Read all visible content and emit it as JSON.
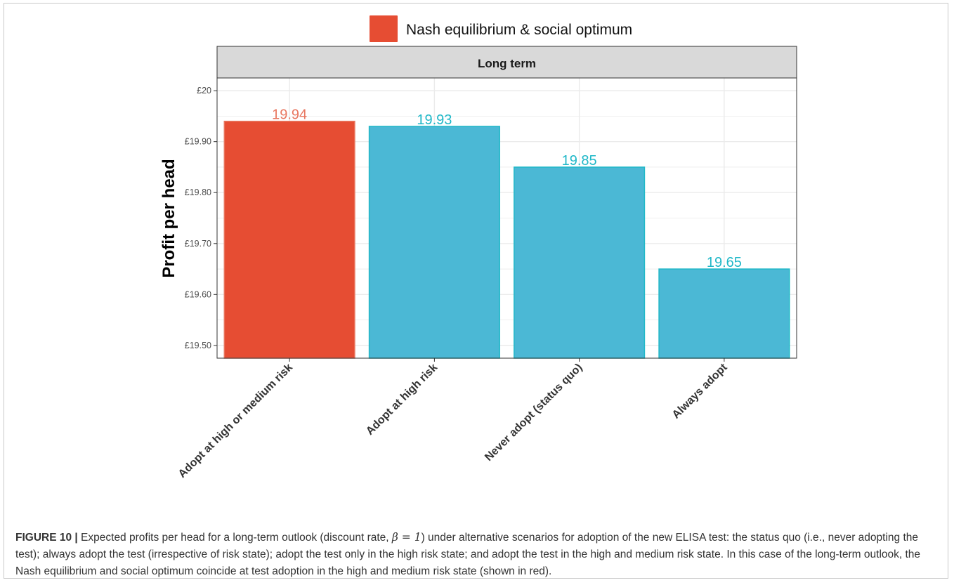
{
  "colors": {
    "highlight": "#E64D33",
    "other": "#4BB8D5",
    "other_label": "#20B8C8",
    "highlight_label": "#E8765F",
    "strip_bg": "#D9D9D9",
    "grid": "#EBEBEB"
  },
  "chart_data": {
    "type": "bar",
    "panel_title": "Long term",
    "ylabel": "Profit per head",
    "xlabel": "",
    "ylim": [
      19.475,
      20.025
    ],
    "yticks": [
      19.5,
      19.6,
      19.7,
      19.8,
      19.9,
      20.0
    ],
    "ytick_labels": [
      "£19.50",
      "£19.60",
      "£19.70",
      "£19.80",
      "£19.90",
      "£20"
    ],
    "categories": [
      "Adopt at high or medium risk",
      "Adopt at high risk",
      "Never adopt (status quo)",
      "Always adopt"
    ],
    "values": [
      19.94,
      19.93,
      19.85,
      19.65
    ],
    "value_labels": [
      "19.94",
      "19.93",
      "19.85",
      "19.65"
    ],
    "highlight": [
      true,
      false,
      false,
      false
    ],
    "legend": {
      "label": "Nash equilibrium & social optimum",
      "position": "top"
    },
    "grid": true
  },
  "caption": {
    "label": "FIGURE 10 |",
    "text_before": " Expected profits per head for a long-term outlook (discount rate, ",
    "beta": "β = 1",
    "text_after": ") under alternative scenarios for adoption of the new ELISA test: the status quo (i.e., never adopting the test); always adopt the test (irrespective of risk state); adopt the test only in the high risk state; and adopt the test in the high and medium risk state. In this case of the long-term outlook, the Nash equilibrium and social optimum coincide at test adoption in the high and medium risk state (shown in red)."
  }
}
